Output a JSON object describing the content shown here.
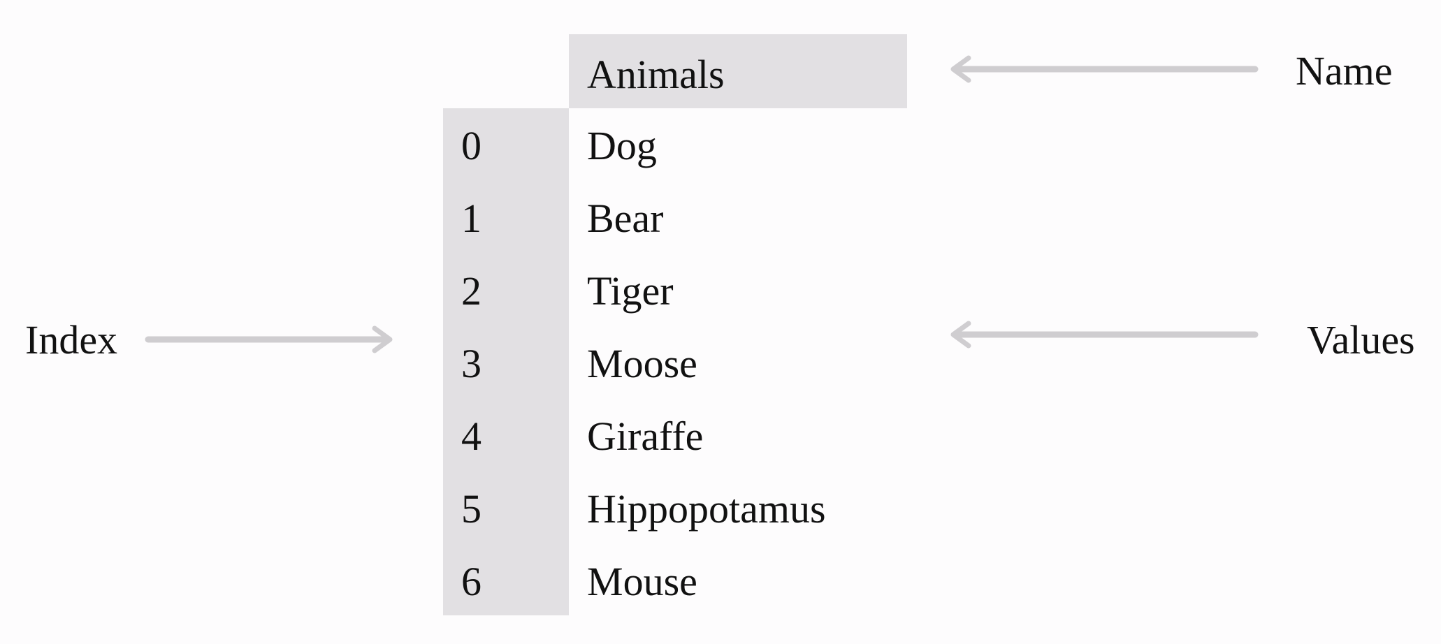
{
  "diagram": {
    "series_name": "Animals",
    "rows": [
      {
        "index": "0",
        "value": "Dog"
      },
      {
        "index": "1",
        "value": "Bear"
      },
      {
        "index": "2",
        "value": "Tiger"
      },
      {
        "index": "3",
        "value": "Moose"
      },
      {
        "index": "4",
        "value": "Giraffe"
      },
      {
        "index": "5",
        "value": "Hippopotamus"
      },
      {
        "index": "6",
        "value": "Mouse"
      }
    ],
    "callouts": {
      "index_label": "Index",
      "name_label": "Name",
      "values_label": "Values"
    },
    "colors": {
      "cell_shade": "#e2e0e3",
      "arrow": "#cfcdd0",
      "text": "#111111",
      "background": "#fdfcfd"
    }
  }
}
